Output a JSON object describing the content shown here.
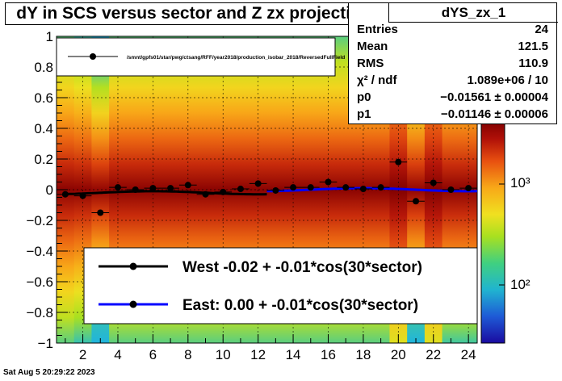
{
  "title": "dY in SCS versus sector and Z zx projection",
  "stats": {
    "name": "dYS_zx_1",
    "rows": [
      {
        "label": "Entries",
        "value": "24"
      },
      {
        "label": "Mean",
        "value": "121.5"
      },
      {
        "label": "RMS",
        "value": "110.9"
      },
      {
        "label": "χ² / ndf",
        "value": "1.089e+06 / 10"
      },
      {
        "label": "p0",
        "value": "−0.01561 ± 0.00004"
      },
      {
        "label": "p1",
        "value": "−0.01146 ± 0.00006"
      }
    ]
  },
  "timestamp": "Sat Aug  5 20:29:22 2023",
  "colorbar": {
    "tick_labels": [
      "10²",
      "10³"
    ]
  },
  "colors": {
    "west_fit": "#000000",
    "east_fit": "#0000ff",
    "points": "#000000"
  },
  "chart_data": {
    "type": "scatter",
    "xlim": [
      0.5,
      24.5
    ],
    "ylim": [
      -1,
      1
    ],
    "x_ticks": [
      2,
      4,
      6,
      8,
      10,
      12,
      14,
      16,
      18,
      20,
      22,
      24
    ],
    "y_ticks": [
      -1,
      -0.8,
      -0.6,
      -0.4,
      -0.2,
      0,
      0.2,
      0.4,
      0.6,
      0.8,
      1
    ],
    "y_tick_labels": [
      "−1",
      "−0.8",
      "−0.6",
      "−0.4",
      "−0.2",
      "0",
      "0.2",
      "0.4",
      "0.6",
      "0.8",
      "1"
    ],
    "top_legend_entry": "/smnt/gpfs01/star/pwg/ctsang/RFF/year2018/production_isobar_2018/ReversedFullField",
    "series": [
      {
        "name": "",
        "x": [
          1,
          2,
          3,
          4,
          5,
          6,
          7,
          8,
          9,
          10,
          11,
          12,
          13,
          14,
          15,
          16,
          17,
          18,
          19,
          20,
          21,
          22,
          23,
          24
        ],
        "y": [
          -0.03,
          -0.04,
          -0.15,
          0.015,
          0.0,
          0.01,
          0.01,
          0.03,
          -0.03,
          -0.015,
          0.005,
          0.04,
          -0.005,
          0.015,
          0.015,
          0.05,
          0.015,
          0.005,
          0.015,
          0.18,
          -0.075,
          0.045,
          0.0,
          0.01
        ]
      }
    ],
    "fits": [
      {
        "name": "West -0.02 + -0.01*cos(30*sector)",
        "x_range": [
          1,
          12.5
        ],
        "p0": -0.02,
        "p1": -0.01,
        "color": "#000000"
      },
      {
        "name": "East:  0.00 + -0.01*cos(30*sector)",
        "x_range": [
          12.5,
          24.5
        ],
        "p0": 0.0,
        "p1": -0.01,
        "color": "#0000ff"
      }
    ],
    "heatmap_background": {
      "column_intensity": [
        0.55,
        0.45,
        0.15,
        0.55,
        0.55,
        0.55,
        0.55,
        0.55,
        0.55,
        0.55,
        0.55,
        0.55,
        0.55,
        0.55,
        0.55,
        0.55,
        0.55,
        0.55,
        0.55,
        0.9,
        0.2,
        0.9,
        0.5,
        0.5
      ]
    }
  }
}
